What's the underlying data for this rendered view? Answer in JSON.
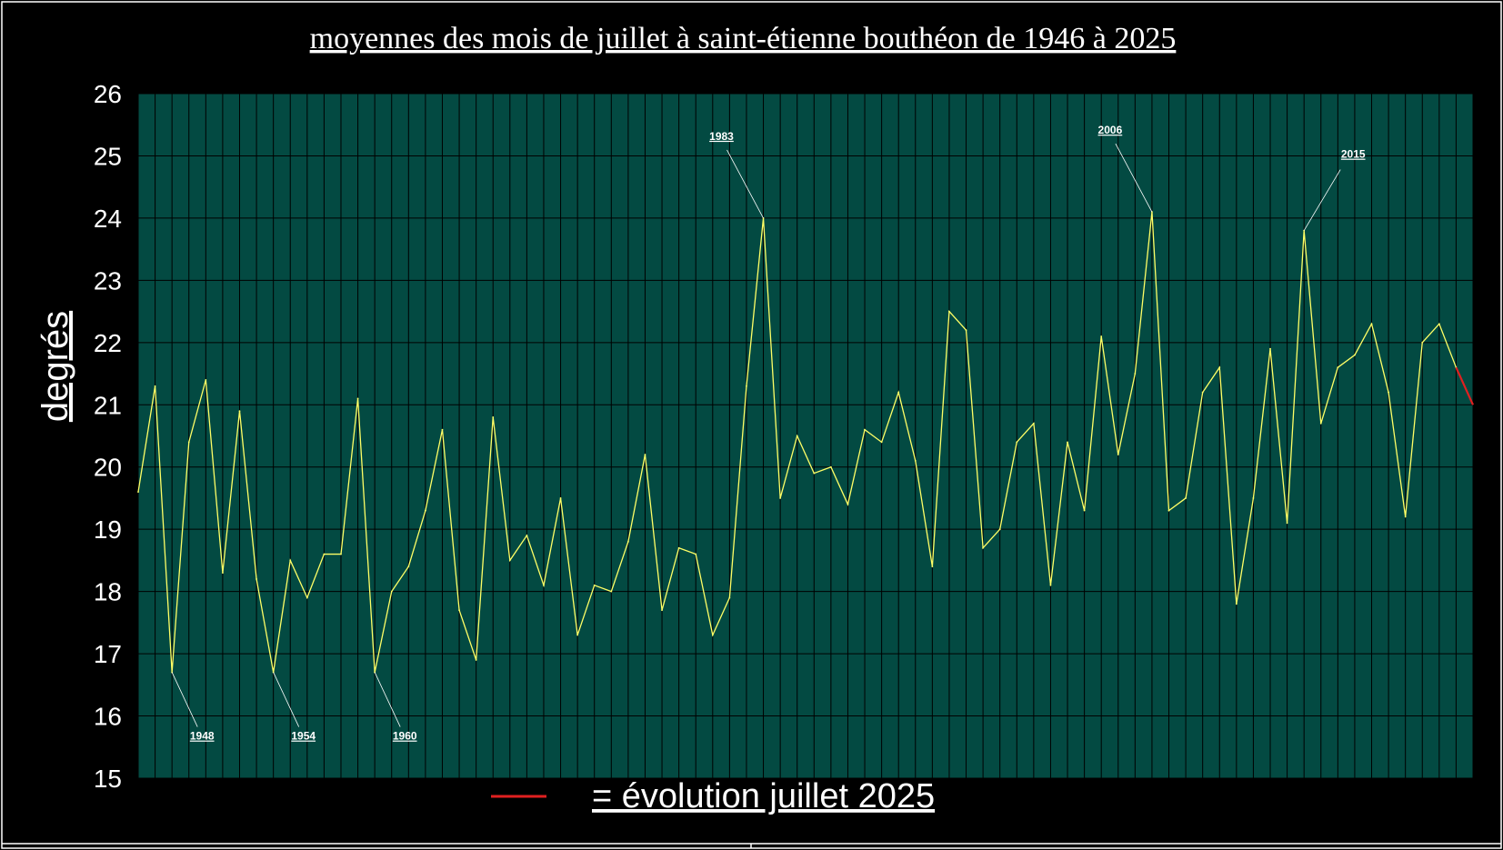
{
  "colors": {
    "background": "#000000",
    "plot_area": "#034A42",
    "grid": "#000000",
    "series_line": "#FFFF66",
    "evolution_line": "#E02020",
    "text": "#FFFFFF"
  },
  "chart_data": {
    "type": "line",
    "title": "moyennes des mois de juillet à saint-étienne bouthéon de 1946 à 2025",
    "ylabel": "degrés",
    "xlabel": "",
    "ylim": [
      15,
      26
    ],
    "yticks": [
      "15",
      "16",
      "17",
      "18",
      "19",
      "20",
      "21",
      "22",
      "23",
      "24",
      "25",
      "26"
    ],
    "grid": true,
    "series": [
      {
        "x": [
          1946,
          1947,
          1948,
          1949,
          1950,
          1951,
          1952,
          1953,
          1954,
          1955,
          1956,
          1957,
          1958,
          1959,
          1960,
          1961,
          1962,
          1963,
          1964,
          1965,
          1966,
          1967,
          1968,
          1969,
          1970,
          1971,
          1972,
          1973,
          1974,
          1975,
          1976,
          1977,
          1978,
          1979,
          1980,
          1981,
          1982,
          1983,
          1984,
          1985,
          1986,
          1987,
          1988,
          1989,
          1990,
          1991,
          1992,
          1993,
          1994,
          1995,
          1996,
          1997,
          1998,
          1999,
          2000,
          2001,
          2002,
          2003,
          2004,
          2005,
          2006,
          2007,
          2008,
          2009,
          2010,
          2011,
          2012,
          2013,
          2014,
          2015,
          2016,
          2017,
          2018,
          2019,
          2020,
          2021,
          2022,
          2023,
          2024
        ],
        "values": [
          19.6,
          21.3,
          16.7,
          20.4,
          21.4,
          18.3,
          20.9,
          18.2,
          16.7,
          18.5,
          17.9,
          18.6,
          18.6,
          21.1,
          16.7,
          18.0,
          18.4,
          19.3,
          20.6,
          17.7,
          16.9,
          20.8,
          18.5,
          18.9,
          18.1,
          19.5,
          17.3,
          18.1,
          18.0,
          18.8,
          20.2,
          17.7,
          18.7,
          18.6,
          17.3,
          17.9,
          21.3,
          24.0,
          19.5,
          20.5,
          19.9,
          20.0,
          19.4,
          20.6,
          20.4,
          21.2,
          20.1,
          18.4,
          22.5,
          22.2,
          18.7,
          19.0,
          20.4,
          20.7,
          18.1,
          20.4,
          19.3,
          22.1,
          20.2,
          21.5,
          24.1,
          19.3,
          19.5,
          21.2,
          21.6,
          17.8,
          19.5,
          21.9,
          19.1,
          23.8,
          20.7,
          21.6,
          21.8,
          22.3,
          21.2,
          19.2,
          22.0,
          22.3,
          21.6
        ]
      },
      {
        "name": "= évolution juillet 2025",
        "x": [
          2024,
          2025
        ],
        "values": [
          21.6,
          21.0
        ]
      }
    ],
    "annotations": [
      {
        "text": "1948",
        "x": 1948,
        "y": 16.7,
        "side": "below"
      },
      {
        "text": "1954",
        "x": 1954,
        "y": 16.7,
        "side": "below"
      },
      {
        "text": "1960",
        "x": 1960,
        "y": 16.7,
        "side": "below"
      },
      {
        "text": "1983",
        "x": 1983,
        "y": 24.0,
        "side": "above"
      },
      {
        "text": "2006",
        "x": 2006,
        "y": 24.1,
        "side": "above"
      },
      {
        "text": "2015",
        "x": 2015,
        "y": 23.8,
        "side": "above"
      }
    ],
    "legend": {
      "position": "bottom-center"
    }
  }
}
